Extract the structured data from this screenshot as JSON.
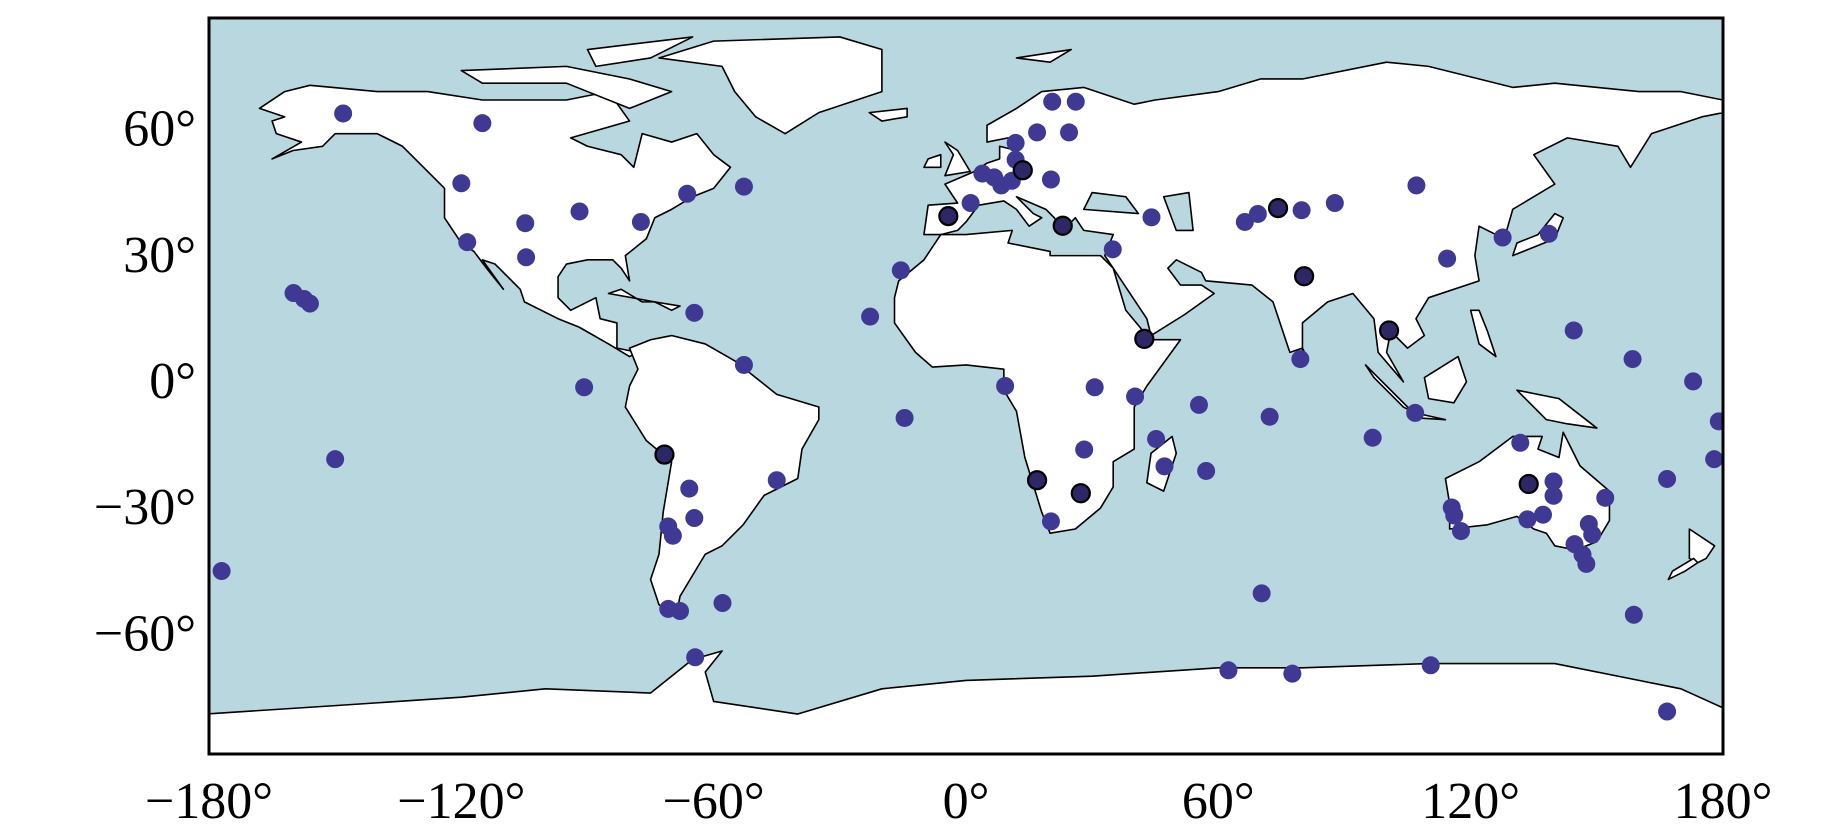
{
  "chart_data": {
    "type": "scatter",
    "xlim": [
      -180,
      180
    ],
    "ylim": [
      -87.5,
      87.5
    ],
    "xticks": [
      {
        "value": -180,
        "label": "−180°"
      },
      {
        "value": -120,
        "label": "−120°"
      },
      {
        "value": -60,
        "label": "−60°"
      },
      {
        "value": 0,
        "label": "0°"
      },
      {
        "value": 60,
        "label": "60°"
      },
      {
        "value": 120,
        "label": "120°"
      },
      {
        "value": 180,
        "label": "180°"
      }
    ],
    "yticks": [
      {
        "value": -60,
        "label": "−60°"
      },
      {
        "value": -30,
        "label": "−30°"
      },
      {
        "value": 0,
        "label": "0°"
      },
      {
        "value": 30,
        "label": "30°"
      },
      {
        "value": 60,
        "label": "60°"
      }
    ],
    "series": [
      {
        "color": "#3f3994",
        "x": [
          -148.1,
          -115,
          -120,
          -118.6,
          -104.8,
          -104.6,
          -91.9,
          -77.3,
          -66.3,
          -52.8,
          -159.9,
          -157.4,
          -156,
          -150,
          -177,
          -90.8,
          -64.6,
          -52.8,
          -65.8,
          -64.6,
          -70.8,
          -69.7,
          -45,
          -70.8,
          -68,
          -57.9,
          -64.4,
          -15.5,
          -22.8,
          -14.6,
          1.1,
          3.9,
          6.7,
          8.4,
          10.9,
          11.8,
          11.8,
          16.9,
          20.5,
          26.1,
          24.5,
          20.2,
          34.9,
          44.1,
          9.3,
          30.6,
          40.2,
          28.1,
          20.2,
          45.2,
          47.2,
          55.4,
          57.1,
          66.3,
          69.4,
          79.8,
          87.7,
          107.1,
          79.5,
          72.2,
          114.4,
          127.6,
          138.6,
          144.5,
          158.5,
          172.9,
          179,
          177.9,
          166.7,
          158.8,
          166.7,
          96.7,
          106.8,
          62.4,
          77.6,
          70.3,
          110.5,
          131.8,
          139.7,
          139.7,
          115.5,
          116.1,
          117.7,
          133.5,
          137.2,
          152,
          148.1,
          148.9,
          144.7,
          146.6,
          147.5
        ],
        "y": [
          64.8,
          62.5,
          48.2,
          34.2,
          38.7,
          30.6,
          41.5,
          39.0,
          45.7,
          47.4,
          22.1,
          20.7,
          19.6,
          -17.4,
          -44,
          -0.3,
          17.4,
          5.0,
          -24.4,
          -31.4,
          -33.4,
          -35.6,
          -22.4,
          -53,
          -53.5,
          -51.6,
          -64.5,
          27.5,
          16.5,
          -7.6,
          43.5,
          50.5,
          49.6,
          47.7,
          48.8,
          57.8,
          53.8,
          60.3,
          67.6,
          67.6,
          60.3,
          49.1,
          32.5,
          40.1,
          0,
          -0.3,
          -2.5,
          -15.1,
          -32.2,
          -12.6,
          -19.1,
          -4.5,
          -20.2,
          39,
          40.9,
          41.8,
          43.5,
          47.7,
          6.4,
          -7.3,
          30.3,
          35.3,
          36.2,
          13.2,
          6.4,
          1.1,
          -8.4,
          -17.4,
          -22.1,
          -54.4,
          -77.4,
          -12.3,
          -6.4,
          -67.6,
          -68.4,
          -49.3,
          -66.4,
          -13.5,
          -22.7,
          -26.1,
          -28.9,
          -30.8,
          -34.5,
          -31.7,
          -30.6,
          -26.6,
          -32.8,
          -35.3,
          -37.6,
          -40.1,
          -42.3
        ]
      },
      {
        "color": "#2d2766",
        "edgecolor": "#000000",
        "x": [
          -71.7,
          -4.2,
          13.5,
          23,
          16.9,
          27.3,
          42.4,
          74.2,
          80.4,
          100.6,
          133.8
        ],
        "y": [
          -16.3,
          40.4,
          51.3,
          38.1,
          -22.4,
          -25.5,
          11.2,
          42.3,
          26.1,
          13.2,
          -23.3
        ]
      }
    ]
  }
}
